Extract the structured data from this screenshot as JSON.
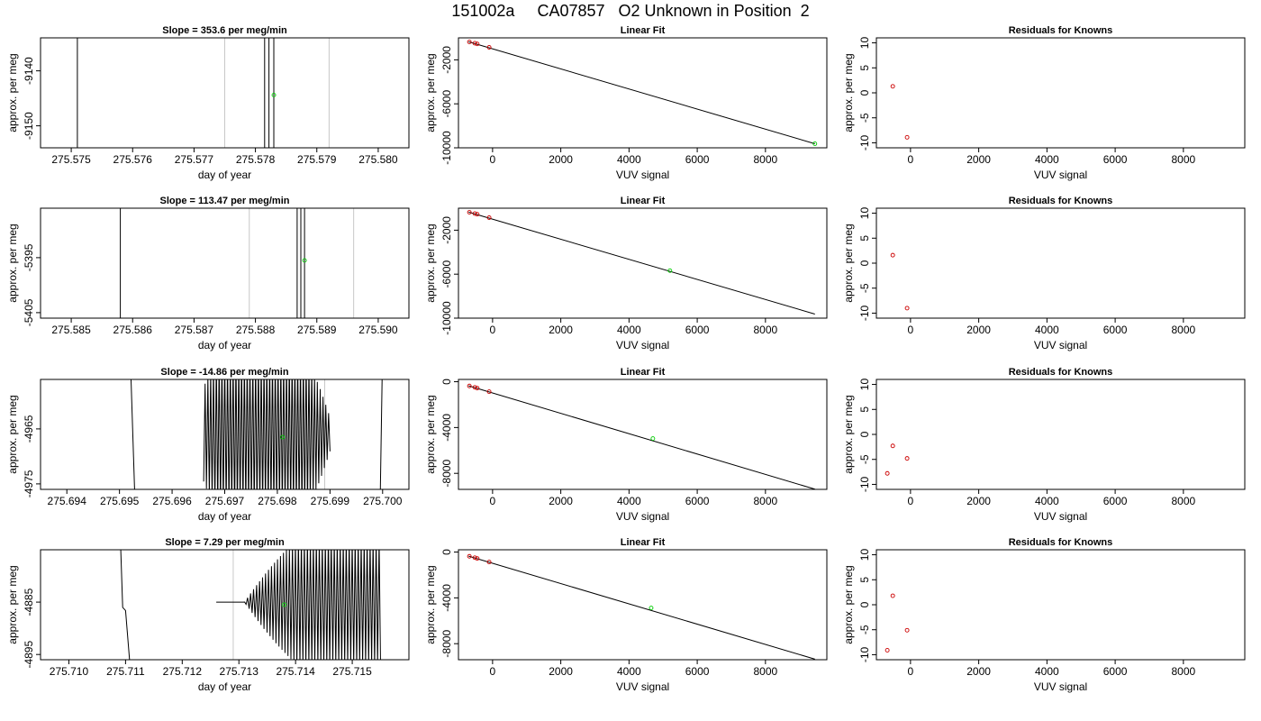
{
  "figure": {
    "title": "151002a     CA07857   O2 Unknown in Position  2"
  },
  "colors": {
    "axis": "#000000",
    "trace": "#000000",
    "marker_lines": "#c8c8c8",
    "unknown_point": "#00cc00",
    "known_point": "#cc0000"
  },
  "chart_data": [
    {
      "row": 0,
      "col": 0,
      "type": "line",
      "title": "Slope =  353.6  per meg/min",
      "xlabel": "day of year",
      "ylabel": "approx. per meg",
      "xlim": [
        275.5745,
        275.5805
      ],
      "ylim": [
        -9154,
        -9134
      ],
      "xticks": [
        "275.575",
        "275.576",
        "275.577",
        "275.578",
        "275.579",
        "275.580"
      ],
      "xtick_values": [
        275.575,
        275.576,
        275.577,
        275.578,
        275.579,
        275.58
      ],
      "yticks": [
        "-9140",
        "-9150"
      ],
      "ytick_values": [
        -9140,
        -9150
      ],
      "vlines": [
        275.5775,
        275.5792
      ],
      "trace": [
        [
          275.5751,
          -9125
        ],
        [
          275.5751,
          -9165
        ],
        [
          275.57815,
          -9165
        ],
        [
          275.57815,
          -9125
        ],
        [
          275.57822,
          -9125
        ],
        [
          275.57822,
          -9165
        ],
        [
          275.5783,
          -9165
        ],
        [
          275.5783,
          -9125
        ]
      ],
      "points": [
        {
          "x": 275.5783,
          "y": -9144.4,
          "color": "unknown"
        }
      ]
    },
    {
      "row": 0,
      "col": 1,
      "type": "scatter",
      "title": "Linear Fit",
      "xlabel": "VUV signal",
      "ylabel": "approx. per meg",
      "xlim": [
        -1000,
        9800
      ],
      "ylim": [
        -10000,
        0
      ],
      "xticks": [
        "0",
        "2000",
        "4000",
        "6000",
        "8000"
      ],
      "xtick_values": [
        0,
        2000,
        4000,
        6000,
        8000
      ],
      "yticks": [
        "-2000",
        "-6000",
        "-10000"
      ],
      "ytick_values": [
        -2000,
        -6000,
        -10000
      ],
      "fit_line": [
        [
          -700,
          -360
        ],
        [
          9450,
          -9630
        ]
      ],
      "points": [
        {
          "x": -680,
          "y": -370,
          "color": "known"
        },
        {
          "x": -520,
          "y": -490,
          "color": "known"
        },
        {
          "x": -450,
          "y": -550,
          "color": "known"
        },
        {
          "x": -100,
          "y": -860,
          "color": "known"
        },
        {
          "x": 9450,
          "y": -9630,
          "color": "unknown"
        }
      ]
    },
    {
      "row": 0,
      "col": 2,
      "type": "scatter",
      "title": "Residuals for Knowns",
      "xlabel": "VUV signal",
      "ylabel": "approx. per meg",
      "xlim": [
        -1000,
        9800
      ],
      "ylim": [
        -11,
        11
      ],
      "xticks": [
        "0",
        "2000",
        "4000",
        "6000",
        "8000"
      ],
      "xtick_values": [
        0,
        2000,
        4000,
        6000,
        8000
      ],
      "yticks": [
        "10",
        "5",
        "0",
        "-5",
        "-10"
      ],
      "ytick_values": [
        10,
        5,
        0,
        -5,
        -10
      ],
      "points": [
        {
          "x": -520,
          "y": 1.3,
          "color": "known"
        },
        {
          "x": -100,
          "y": -8.9,
          "color": "known"
        }
      ]
    },
    {
      "row": 1,
      "col": 0,
      "type": "line",
      "title": "Slope =  113.47  per meg/min",
      "xlabel": "day of year",
      "ylabel": "approx. per meg",
      "xlim": [
        275.5845,
        275.5905
      ],
      "ylim": [
        -5406,
        -5386
      ],
      "xticks": [
        "275.585",
        "275.586",
        "275.587",
        "275.588",
        "275.589",
        "275.590"
      ],
      "xtick_values": [
        275.585,
        275.586,
        275.587,
        275.588,
        275.589,
        275.59
      ],
      "yticks": [
        "-5395",
        "-5405"
      ],
      "ytick_values": [
        -5395,
        -5405
      ],
      "vlines": [
        275.5879,
        275.5896
      ],
      "trace": [
        [
          275.5858,
          -5380
        ],
        [
          275.5858,
          -5415
        ],
        [
          275.58868,
          -5415
        ],
        [
          275.58868,
          -5380
        ],
        [
          275.58874,
          -5380
        ],
        [
          275.58874,
          -5415
        ],
        [
          275.5888,
          -5415
        ],
        [
          275.5888,
          -5380
        ]
      ],
      "points": [
        {
          "x": 275.5888,
          "y": -5395.5,
          "color": "unknown"
        }
      ]
    },
    {
      "row": 1,
      "col": 1,
      "type": "scatter",
      "title": "Linear Fit",
      "xlabel": "VUV signal",
      "ylabel": "approx. per meg",
      "xlim": [
        -1000,
        9800
      ],
      "ylim": [
        -10000,
        0
      ],
      "xticks": [
        "0",
        "2000",
        "4000",
        "6000",
        "8000"
      ],
      "xtick_values": [
        0,
        2000,
        4000,
        6000,
        8000
      ],
      "yticks": [
        "-2000",
        "-6000",
        "-10000"
      ],
      "ytick_values": [
        -2000,
        -6000,
        -10000
      ],
      "fit_line": [
        [
          -700,
          -360
        ],
        [
          9450,
          -9630
        ]
      ],
      "points": [
        {
          "x": -680,
          "y": -370,
          "color": "known"
        },
        {
          "x": -520,
          "y": -490,
          "color": "known"
        },
        {
          "x": -450,
          "y": -550,
          "color": "known"
        },
        {
          "x": -100,
          "y": -860,
          "color": "known"
        },
        {
          "x": 5200,
          "y": -5680,
          "color": "unknown"
        }
      ]
    },
    {
      "row": 1,
      "col": 2,
      "type": "scatter",
      "title": "Residuals for Knowns",
      "xlabel": "VUV signal",
      "ylabel": "approx. per meg",
      "xlim": [
        -1000,
        9800
      ],
      "ylim": [
        -11,
        11
      ],
      "xticks": [
        "0",
        "2000",
        "4000",
        "6000",
        "8000"
      ],
      "xtick_values": [
        0,
        2000,
        4000,
        6000,
        8000
      ],
      "yticks": [
        "10",
        "5",
        "0",
        "-5",
        "-10"
      ],
      "ytick_values": [
        10,
        5,
        0,
        -5,
        -10
      ],
      "points": [
        {
          "x": -520,
          "y": 1.6,
          "color": "known"
        },
        {
          "x": -100,
          "y": -9.0,
          "color": "known"
        }
      ]
    },
    {
      "row": 2,
      "col": 0,
      "type": "line",
      "title": "Slope =  -14.86  per meg/min",
      "xlabel": "day of year",
      "ylabel": "approx. per meg",
      "xlim": [
        275.6935,
        275.7005
      ],
      "ylim": [
        -4976,
        -4956
      ],
      "xticks": [
        "275.694",
        "275.695",
        "275.696",
        "275.697",
        "275.698",
        "275.699",
        "275.700"
      ],
      "xtick_values": [
        275.694,
        275.695,
        275.696,
        275.697,
        275.698,
        275.699,
        275.7
      ],
      "yticks": [
        "-4965",
        "-4975"
      ],
      "ytick_values": [
        -4965,
        -4975
      ],
      "vlines": [
        275.6972,
        275.6989
      ],
      "oscillation": {
        "start": 275.6966,
        "end": 275.699,
        "cycles": 45,
        "center": 275.6977,
        "half_width": 0.0014,
        "low": -4980,
        "high": -4952
      },
      "trace": [
        [
          275.6952,
          -4950
        ],
        [
          275.6953,
          -4980
        ]
      ],
      "trace2": [
        [
          275.69995,
          -4980
        ],
        [
          275.7,
          -4950
        ]
      ],
      "points": [
        {
          "x": 275.6981,
          "y": -4966.5,
          "color": "unknown"
        }
      ]
    },
    {
      "row": 2,
      "col": 1,
      "type": "scatter",
      "title": "Linear Fit",
      "xlabel": "VUV signal",
      "ylabel": "approx. per meg",
      "xlim": [
        -1000,
        9800
      ],
      "ylim": [
        -9400,
        200
      ],
      "xticks": [
        "0",
        "2000",
        "4000",
        "6000",
        "8000"
      ],
      "xtick_values": [
        0,
        2000,
        4000,
        6000,
        8000
      ],
      "yticks": [
        "0",
        "-4000",
        "-8000"
      ],
      "ytick_values": [
        0,
        -4000,
        -8000
      ],
      "fit_line": [
        [
          -700,
          -360
        ],
        [
          9450,
          -9380
        ]
      ],
      "points": [
        {
          "x": -680,
          "y": -370,
          "color": "known"
        },
        {
          "x": -520,
          "y": -490,
          "color": "known"
        },
        {
          "x": -450,
          "y": -560,
          "color": "known"
        },
        {
          "x": -100,
          "y": -870,
          "color": "known"
        },
        {
          "x": 4700,
          "y": -4960,
          "color": "unknown"
        }
      ]
    },
    {
      "row": 2,
      "col": 2,
      "type": "scatter",
      "title": "Residuals for Knowns",
      "xlabel": "VUV signal",
      "ylabel": "approx. per meg",
      "xlim": [
        -1000,
        9800
      ],
      "ylim": [
        -11,
        11
      ],
      "xticks": [
        "0",
        "2000",
        "4000",
        "6000",
        "8000"
      ],
      "xtick_values": [
        0,
        2000,
        4000,
        6000,
        8000
      ],
      "yticks": [
        "10",
        "5",
        "0",
        "-5",
        "-10"
      ],
      "ytick_values": [
        10,
        5,
        0,
        -5,
        -10
      ],
      "points": [
        {
          "x": -680,
          "y": -7.8,
          "color": "known"
        },
        {
          "x": -520,
          "y": -2.3,
          "color": "known"
        },
        {
          "x": -100,
          "y": -4.8,
          "color": "known"
        }
      ]
    },
    {
      "row": 3,
      "col": 0,
      "type": "line",
      "title": "Slope =  7.29  per meg/min",
      "xlabel": "day of year",
      "ylabel": "approx. per meg",
      "xlim": [
        275.7095,
        275.716
      ],
      "ylim": [
        -4896,
        -4875
      ],
      "xticks": [
        "275.710",
        "275.711",
        "275.712",
        "275.713",
        "275.714",
        "275.715"
      ],
      "xtick_values": [
        275.71,
        275.711,
        275.712,
        275.713,
        275.714,
        275.715
      ],
      "yticks": [
        "-4885",
        "-4895"
      ],
      "ytick_values": [
        -4885,
        -4895
      ],
      "vlines": [
        275.7129,
        275.7146
      ],
      "oscillation": {
        "start": 275.7126,
        "end": 275.7155,
        "cycles": 55,
        "center": 275.7155,
        "half_width": 0.0024,
        "low": -4897,
        "high": -4873
      },
      "trace": [
        [
          275.7109,
          -4870
        ],
        [
          275.71095,
          -4886
        ],
        [
          275.711,
          -4886.6
        ],
        [
          275.7111,
          -4900
        ]
      ],
      "points": [
        {
          "x": 275.7138,
          "y": -4885.5,
          "color": "unknown"
        }
      ]
    },
    {
      "row": 3,
      "col": 1,
      "type": "scatter",
      "title": "Linear Fit",
      "xlabel": "VUV signal",
      "ylabel": "approx. per meg",
      "xlim": [
        -1000,
        9800
      ],
      "ylim": [
        -9400,
        200
      ],
      "xticks": [
        "0",
        "2000",
        "4000",
        "6000",
        "8000"
      ],
      "xtick_values": [
        0,
        2000,
        4000,
        6000,
        8000
      ],
      "yticks": [
        "0",
        "-4000",
        "-8000"
      ],
      "ytick_values": [
        0,
        -4000,
        -8000
      ],
      "fit_line": [
        [
          -700,
          -360
        ],
        [
          9450,
          -9350
        ]
      ],
      "points": [
        {
          "x": -680,
          "y": -370,
          "color": "known"
        },
        {
          "x": -520,
          "y": -490,
          "color": "known"
        },
        {
          "x": -450,
          "y": -560,
          "color": "known"
        },
        {
          "x": -100,
          "y": -870,
          "color": "known"
        },
        {
          "x": 4650,
          "y": -4880,
          "color": "unknown"
        }
      ]
    },
    {
      "row": 3,
      "col": 2,
      "type": "scatter",
      "title": "Residuals for Knowns",
      "xlabel": "VUV signal",
      "ylabel": "approx. per meg",
      "xlim": [
        -1000,
        9800
      ],
      "ylim": [
        -11,
        11
      ],
      "xticks": [
        "0",
        "2000",
        "4000",
        "6000",
        "8000"
      ],
      "xtick_values": [
        0,
        2000,
        4000,
        6000,
        8000
      ],
      "yticks": [
        "10",
        "5",
        "0",
        "-5",
        "-10"
      ],
      "ytick_values": [
        10,
        5,
        0,
        -5,
        -10
      ],
      "points": [
        {
          "x": -680,
          "y": -9.1,
          "color": "known"
        },
        {
          "x": -520,
          "y": 1.8,
          "color": "known"
        },
        {
          "x": -100,
          "y": -5.1,
          "color": "known"
        }
      ]
    }
  ]
}
